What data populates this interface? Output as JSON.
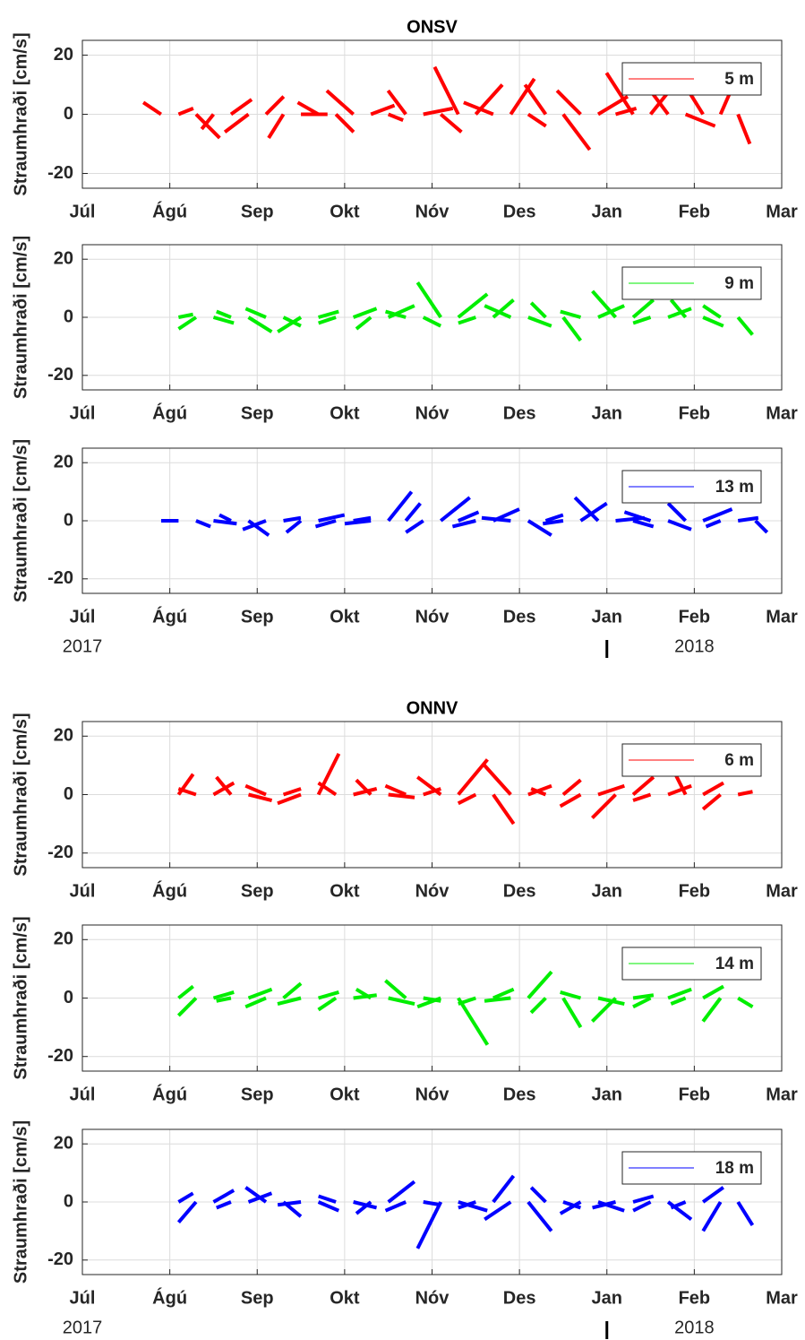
{
  "chart_data": [
    {
      "type": "feather",
      "title": "ONSV",
      "ylabel": "Straumhraði [cm/s]",
      "grid": true,
      "legend": "upper right",
      "xlim": [
        0,
        8
      ],
      "xticks": [
        {
          "value": 0,
          "label": "Júl"
        },
        {
          "value": 1,
          "label": "Ágú"
        },
        {
          "value": 2,
          "label": "Sep"
        },
        {
          "value": 3,
          "label": "Okt"
        },
        {
          "value": 4,
          "label": "Nóv"
        },
        {
          "value": 5,
          "label": "Des"
        },
        {
          "value": 6,
          "label": "Jan"
        },
        {
          "value": 7,
          "label": "Feb"
        },
        {
          "value": 8,
          "label": "Mar"
        }
      ],
      "ylim": [
        -25,
        25
      ],
      "yticks": [
        -20,
        0,
        20
      ],
      "x": [
        0.9,
        1.1,
        1.3,
        1.5,
        1.7,
        1.9,
        2.1,
        2.3,
        2.5,
        2.7,
        2.9,
        3.1,
        3.3,
        3.5,
        3.7,
        3.9,
        4.1,
        4.3,
        4.5,
        4.7,
        4.9,
        5.1,
        5.3,
        5.5,
        5.7,
        5.9,
        6.1,
        6.3,
        6.5,
        6.7,
        6.9,
        7.1,
        7.3,
        7.5
      ],
      "series": [
        {
          "name": "5 m",
          "color": "#ff0000",
          "u": [
            -6,
            5,
            8,
            -4,
            7,
            -8,
            6,
            -5,
            9,
            -7,
            6,
            -9,
            8,
            5,
            -6,
            10,
            7,
            -8,
            9,
            -10,
            8,
            6,
            -7,
            9,
            -8,
            10,
            7,
            -9,
            8,
            -6,
            10,
            -5,
            7,
            4
          ],
          "v": [
            4,
            2,
            -8,
            -5,
            5,
            -6,
            6,
            -8,
            0,
            4,
            -6,
            8,
            3,
            -2,
            8,
            2,
            -6,
            16,
            10,
            4,
            12,
            -4,
            10,
            -12,
            8,
            6,
            2,
            14,
            10,
            8,
            -4,
            8,
            16,
            -10
          ]
        }
      ]
    },
    {
      "type": "feather",
      "ylabel": "Straumhraði [cm/s]",
      "grid": true,
      "legend": "upper right",
      "xlim": [
        0,
        8
      ],
      "xticks": [
        {
          "value": 0,
          "label": "Júl"
        },
        {
          "value": 1,
          "label": "Ágú"
        },
        {
          "value": 2,
          "label": "Sep"
        },
        {
          "value": 3,
          "label": "Okt"
        },
        {
          "value": 4,
          "label": "Nóv"
        },
        {
          "value": 5,
          "label": "Des"
        },
        {
          "value": 6,
          "label": "Jan"
        },
        {
          "value": 7,
          "label": "Feb"
        },
        {
          "value": 8,
          "label": "Mar"
        }
      ],
      "ylim": [
        -25,
        25
      ],
      "yticks": [
        -20,
        0,
        20
      ],
      "x": [
        1.1,
        1.3,
        1.5,
        1.7,
        1.9,
        2.1,
        2.3,
        2.5,
        2.7,
        2.9,
        3.1,
        3.3,
        3.5,
        3.7,
        3.9,
        4.1,
        4.3,
        4.5,
        4.7,
        4.9,
        5.1,
        5.3,
        5.5,
        5.7,
        5.9,
        6.1,
        6.3,
        6.5,
        6.7,
        6.9,
        7.1,
        7.3,
        7.5
      ],
      "series": [
        {
          "name": "9 m",
          "color": "#00ee00",
          "u": [
            5,
            -6,
            7,
            -5,
            8,
            -7,
            6,
            -8,
            7,
            -6,
            8,
            -5,
            9,
            -7,
            6,
            -8,
            10,
            -6,
            7,
            -9,
            8,
            -5,
            6,
            -7,
            9,
            -8,
            7,
            -6,
            8,
            -5,
            7,
            -6,
            5
          ],
          "v": [
            1,
            -4,
            -2,
            2,
            -5,
            3,
            -3,
            -5,
            2,
            -2,
            3,
            -4,
            4,
            2,
            -3,
            12,
            8,
            -2,
            6,
            4,
            -3,
            5,
            -8,
            2,
            4,
            9,
            6,
            -2,
            3,
            6,
            -3,
            4,
            -6
          ]
        }
      ]
    },
    {
      "type": "feather",
      "ylabel": "Straumhraði [cm/s]",
      "grid": true,
      "legend": "upper right",
      "xlim": [
        0,
        8
      ],
      "xticks": [
        {
          "value": 0,
          "label": "Júl"
        },
        {
          "value": 1,
          "label": "Ágú"
        },
        {
          "value": 2,
          "label": "Sep"
        },
        {
          "value": 3,
          "label": "Okt"
        },
        {
          "value": 4,
          "label": "Nóv"
        },
        {
          "value": 5,
          "label": "Des"
        },
        {
          "value": 6,
          "label": "Jan"
        },
        {
          "value": 7,
          "label": "Feb"
        },
        {
          "value": 8,
          "label": "Mar"
        }
      ],
      "ylim": [
        -25,
        25
      ],
      "yticks": [
        -20,
        0,
        20
      ],
      "year_labels": [
        {
          "value": 0,
          "label": "2017"
        },
        {
          "value": 7,
          "label": "2018"
        }
      ],
      "year_marker": 6,
      "x": [
        1.1,
        1.3,
        1.5,
        1.7,
        1.9,
        2.1,
        2.3,
        2.5,
        2.7,
        2.9,
        3.1,
        3.3,
        3.5,
        3.7,
        3.9,
        4.1,
        4.3,
        4.5,
        4.7,
        4.9,
        5.1,
        5.3,
        5.5,
        5.7,
        5.9,
        6.1,
        6.3,
        6.5,
        6.7,
        6.9,
        7.1,
        7.3,
        7.5,
        7.7
      ],
      "series": [
        {
          "name": "13 m",
          "color": "#0000ff",
          "u": [
            -6,
            5,
            8,
            -4,
            7,
            -8,
            6,
            -5,
            9,
            -7,
            6,
            -9,
            8,
            5,
            -6,
            10,
            7,
            -8,
            9,
            -10,
            8,
            6,
            -7,
            9,
            -8,
            10,
            7,
            -9,
            8,
            -6,
            10,
            -5,
            7,
            4
          ],
          "v": [
            0,
            -2,
            -1,
            2,
            -5,
            -3,
            1,
            -4,
            2,
            -2,
            1,
            -1,
            10,
            6,
            -4,
            8,
            3,
            -2,
            4,
            1,
            -5,
            2,
            -1,
            6,
            8,
            1,
            -2,
            3,
            -3,
            6,
            4,
            -2,
            1,
            -4
          ]
        }
      ]
    },
    {
      "type": "feather",
      "title": "ONNV",
      "ylabel": "Straumhraði [cm/s]",
      "grid": true,
      "legend": "upper right",
      "xlim": [
        0,
        8
      ],
      "xticks": [
        {
          "value": 0,
          "label": "Júl"
        },
        {
          "value": 1,
          "label": "Ágú"
        },
        {
          "value": 2,
          "label": "Sep"
        },
        {
          "value": 3,
          "label": "Okt"
        },
        {
          "value": 4,
          "label": "Nóv"
        },
        {
          "value": 5,
          "label": "Des"
        },
        {
          "value": 6,
          "label": "Jan"
        },
        {
          "value": 7,
          "label": "Feb"
        },
        {
          "value": 8,
          "label": "Mar"
        }
      ],
      "ylim": [
        -25,
        25
      ],
      "yticks": [
        -20,
        0,
        20
      ],
      "x": [
        1.1,
        1.3,
        1.5,
        1.7,
        1.9,
        2.1,
        2.3,
        2.5,
        2.7,
        2.9,
        3.1,
        3.3,
        3.5,
        3.7,
        3.9,
        4.1,
        4.3,
        4.5,
        4.7,
        4.9,
        5.1,
        5.3,
        5.5,
        5.7,
        5.9,
        6.1,
        6.3,
        6.5,
        6.7,
        6.9,
        7.1,
        7.3,
        7.5
      ],
      "series": [
        {
          "name": "6 m",
          "color": "#ff0000",
          "u": [
            5,
            -6,
            7,
            -5,
            8,
            -7,
            6,
            -8,
            7,
            -6,
            8,
            -5,
            9,
            -7,
            6,
            -8,
            10,
            -6,
            7,
            -9,
            8,
            -5,
            6,
            -7,
            9,
            -8,
            7,
            -6,
            8,
            -5,
            7,
            -6,
            5
          ],
          "v": [
            7,
            2,
            4,
            6,
            -2,
            3,
            2,
            -3,
            14,
            4,
            2,
            5,
            -1,
            3,
            2,
            6,
            12,
            -3,
            -10,
            10,
            3,
            2,
            5,
            -4,
            3,
            -8,
            6,
            -2,
            3,
            10,
            4,
            -5,
            1
          ]
        }
      ]
    },
    {
      "type": "feather",
      "ylabel": "Straumhraði [cm/s]",
      "grid": true,
      "legend": "upper right",
      "xlim": [
        0,
        8
      ],
      "xticks": [
        {
          "value": 0,
          "label": "Júl"
        },
        {
          "value": 1,
          "label": "Ágú"
        },
        {
          "value": 2,
          "label": "Sep"
        },
        {
          "value": 3,
          "label": "Okt"
        },
        {
          "value": 4,
          "label": "Nóv"
        },
        {
          "value": 5,
          "label": "Des"
        },
        {
          "value": 6,
          "label": "Jan"
        },
        {
          "value": 7,
          "label": "Feb"
        },
        {
          "value": 8,
          "label": "Mar"
        }
      ],
      "ylim": [
        -25,
        25
      ],
      "yticks": [
        -20,
        0,
        20
      ],
      "x": [
        1.1,
        1.3,
        1.5,
        1.7,
        1.9,
        2.1,
        2.3,
        2.5,
        2.7,
        2.9,
        3.1,
        3.3,
        3.5,
        3.7,
        3.9,
        4.1,
        4.3,
        4.5,
        4.7,
        4.9,
        5.1,
        5.3,
        5.5,
        5.7,
        5.9,
        6.1,
        6.3,
        6.5,
        6.7,
        6.9,
        7.1,
        7.3,
        7.5
      ],
      "series": [
        {
          "name": "14 m",
          "color": "#00ee00",
          "u": [
            5,
            -6,
            7,
            -5,
            8,
            -7,
            6,
            -8,
            7,
            -6,
            8,
            -5,
            9,
            -7,
            6,
            -8,
            10,
            -6,
            7,
            -9,
            8,
            -5,
            6,
            -7,
            9,
            -8,
            7,
            -6,
            8,
            -5,
            7,
            -6,
            5
          ],
          "v": [
            4,
            -6,
            2,
            -1,
            3,
            -3,
            5,
            -2,
            2,
            -4,
            1,
            3,
            -2,
            6,
            -1,
            -3,
            -16,
            -2,
            3,
            -1,
            9,
            -5,
            -10,
            2,
            -2,
            -8,
            1,
            -3,
            3,
            -2,
            4,
            -8,
            -3
          ]
        }
      ]
    },
    {
      "type": "feather",
      "ylabel": "Straumhraði [cm/s]",
      "grid": true,
      "legend": "upper right",
      "xlim": [
        0,
        8
      ],
      "xticks": [
        {
          "value": 0,
          "label": "Júl"
        },
        {
          "value": 1,
          "label": "Ágú"
        },
        {
          "value": 2,
          "label": "Sep"
        },
        {
          "value": 3,
          "label": "Okt"
        },
        {
          "value": 4,
          "label": "Nóv"
        },
        {
          "value": 5,
          "label": "Des"
        },
        {
          "value": 6,
          "label": "Jan"
        },
        {
          "value": 7,
          "label": "Feb"
        },
        {
          "value": 8,
          "label": "Mar"
        }
      ],
      "ylim": [
        -25,
        25
      ],
      "yticks": [
        -20,
        0,
        20
      ],
      "year_labels": [
        {
          "value": 0,
          "label": "2017"
        },
        {
          "value": 7,
          "label": "2018"
        }
      ],
      "year_marker": 6,
      "x": [
        1.1,
        1.3,
        1.5,
        1.7,
        1.9,
        2.1,
        2.3,
        2.5,
        2.7,
        2.9,
        3.1,
        3.3,
        3.5,
        3.7,
        3.9,
        4.1,
        4.3,
        4.5,
        4.7,
        4.9,
        5.1,
        5.3,
        5.5,
        5.7,
        5.9,
        6.1,
        6.3,
        6.5,
        6.7,
        6.9,
        7.1,
        7.3,
        7.5
      ],
      "series": [
        {
          "name": "18 m",
          "color": "#0000ff",
          "u": [
            5,
            -6,
            7,
            -5,
            8,
            -7,
            6,
            -8,
            7,
            -6,
            8,
            -5,
            9,
            -7,
            6,
            -8,
            10,
            -6,
            7,
            -9,
            8,
            -5,
            6,
            -7,
            9,
            -8,
            7,
            -6,
            8,
            -5,
            7,
            -6,
            5
          ],
          "v": [
            3,
            -7,
            4,
            -2,
            3,
            5,
            -5,
            -1,
            -3,
            2,
            -2,
            -4,
            7,
            -3,
            -1,
            -16,
            -3,
            -2,
            9,
            -6,
            -10,
            5,
            -2,
            -4,
            -3,
            -2,
            2,
            -3,
            -6,
            -2,
            5,
            -10,
            -8
          ]
        }
      ]
    }
  ]
}
